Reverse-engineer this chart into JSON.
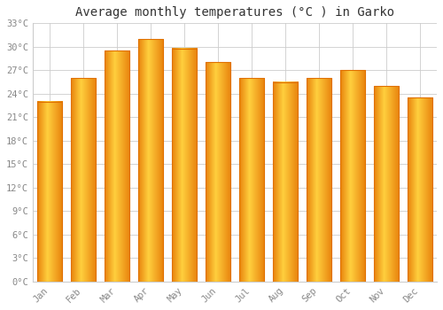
{
  "title": "Average monthly temperatures (°C ) in Garko",
  "months": [
    "Jan",
    "Feb",
    "Mar",
    "Apr",
    "May",
    "Jun",
    "Jul",
    "Aug",
    "Sep",
    "Oct",
    "Nov",
    "Dec"
  ],
  "values": [
    23.0,
    26.0,
    29.5,
    31.0,
    29.8,
    28.0,
    26.0,
    25.5,
    26.0,
    27.0,
    25.0,
    23.5
  ],
  "bar_color_left": "#E8820C",
  "bar_color_mid": "#FFD54F",
  "bar_color_right": "#E8820C",
  "ylim": [
    0,
    33
  ],
  "yticks": [
    0,
    3,
    6,
    9,
    12,
    15,
    18,
    21,
    24,
    27,
    30,
    33
  ],
  "ytick_labels": [
    "0°C",
    "3°C",
    "6°C",
    "9°C",
    "12°C",
    "15°C",
    "18°C",
    "21°C",
    "24°C",
    "27°C",
    "30°C",
    "33°C"
  ],
  "background_color": "#ffffff",
  "grid_color": "#cccccc",
  "tick_color": "#888888",
  "title_fontsize": 10,
  "tick_fontsize": 7.5,
  "font_family": "monospace"
}
